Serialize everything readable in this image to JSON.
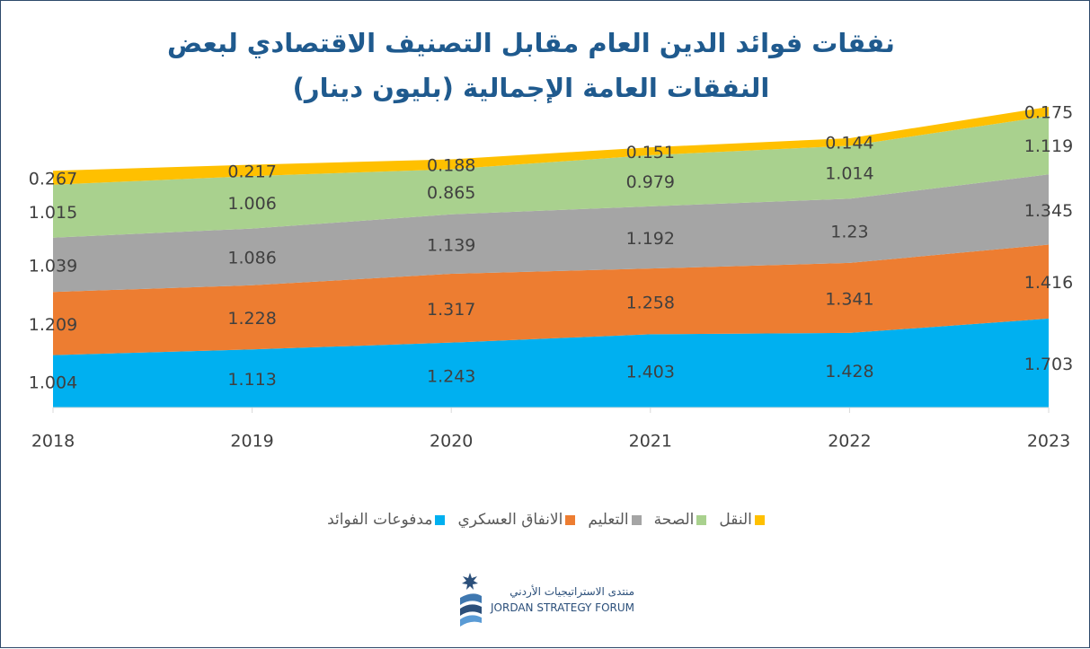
{
  "chart_data": {
    "type": "area",
    "stacked": true,
    "title": "نفقات فوائد الدين العام مقابل التصنيف الاقتصادي لبعض النفقات العامة الإجمالية (بليون دينار)",
    "categories": [
      "2018",
      "2019",
      "2020",
      "2021",
      "2022",
      "2023"
    ],
    "series": [
      {
        "name": "مدفوعات الفوائد",
        "color": "#00b0f0",
        "values": [
          1.004,
          1.113,
          1.243,
          1.403,
          1.428,
          1.703
        ]
      },
      {
        "name": "الانفاق العسكري",
        "color": "#ed7d31",
        "values": [
          1.209,
          1.228,
          1.317,
          1.258,
          1.341,
          1.416
        ]
      },
      {
        "name": "التعليم",
        "color": "#a5a5a5",
        "values": [
          1.039,
          1.086,
          1.139,
          1.192,
          1.23,
          1.345
        ]
      },
      {
        "name": "الصحة",
        "color": "#a9d18e",
        "values": [
          1.015,
          1.006,
          0.865,
          0.979,
          1.014,
          1.119
        ]
      },
      {
        "name": "النقل",
        "color": "#ffc000",
        "values": [
          0.267,
          0.217,
          0.188,
          0.151,
          0.144,
          0.175
        ]
      }
    ],
    "legend": "bottom"
  },
  "logo": {
    "arabic": "منتدى الاستراتيجيات الأردني",
    "english": "JORDAN STRATEGY FORUM"
  }
}
